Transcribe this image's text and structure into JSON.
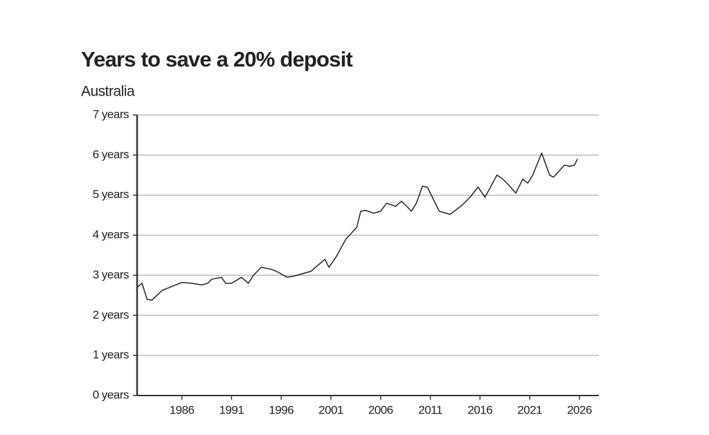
{
  "chart_data": {
    "type": "line",
    "title": "Years to save a 20% deposit",
    "subtitle": "Australia",
    "x": [
      1981.5,
      1982,
      1982.5,
      1983,
      1984,
      1985,
      1986,
      1987,
      1988,
      1988.6,
      1989,
      1990,
      1990.4,
      1991,
      1992,
      1992.7,
      1993.2,
      1994,
      1995,
      1995.5,
      1996.6,
      1997.3,
      1998.3,
      1999,
      2000.4,
      2000.8,
      2001.5,
      2002.5,
      2003.6,
      2004,
      2004.5,
      2005.3,
      2006,
      2006.6,
      2007.5,
      2008.1,
      2009.1,
      2009.6,
      2010.2,
      2010.7,
      2011.3,
      2011.9,
      2013,
      2014.2,
      2015,
      2015.8,
      2016.5,
      2017.7,
      2018.3,
      2018.9,
      2019.6,
      2020.3,
      2020.8,
      2021.3,
      2022.2,
      2023,
      2023.4,
      2024.5,
      2025,
      2025.5,
      2025.8
    ],
    "series": [
      {
        "name": "Years to save",
        "color": "#222222",
        "values": [
          2.7,
          2.8,
          2.4,
          2.38,
          2.62,
          2.72,
          2.82,
          2.8,
          2.76,
          2.8,
          2.9,
          2.95,
          2.8,
          2.8,
          2.95,
          2.8,
          3.0,
          3.2,
          3.15,
          3.1,
          2.95,
          2.98,
          3.05,
          3.1,
          3.4,
          3.2,
          3.45,
          3.9,
          4.2,
          4.6,
          4.62,
          4.55,
          4.6,
          4.8,
          4.72,
          4.85,
          4.6,
          4.8,
          5.22,
          5.2,
          4.9,
          4.6,
          4.52,
          4.75,
          4.95,
          5.2,
          4.95,
          5.5,
          5.4,
          5.25,
          5.05,
          5.4,
          5.3,
          5.5,
          6.05,
          5.5,
          5.45,
          5.75,
          5.72,
          5.75,
          5.9
        ]
      }
    ],
    "xlim": [
      1981.5,
      2027.75
    ],
    "xticks": [
      1986,
      1991,
      1996,
      2001,
      2006,
      2011,
      2016,
      2021,
      2026
    ],
    "ylim": [
      0,
      7
    ],
    "yticks": [
      {
        "value": 0,
        "label": "0 years"
      },
      {
        "value": 1,
        "label": "1 years"
      },
      {
        "value": 2,
        "label": "2 years"
      },
      {
        "value": 3,
        "label": "3 years"
      },
      {
        "value": 4,
        "label": "4 years"
      },
      {
        "value": 5,
        "label": "5 years"
      },
      {
        "value": 6,
        "label": "6 years"
      },
      {
        "value": 7,
        "label": "7 years"
      }
    ],
    "grid": true
  }
}
